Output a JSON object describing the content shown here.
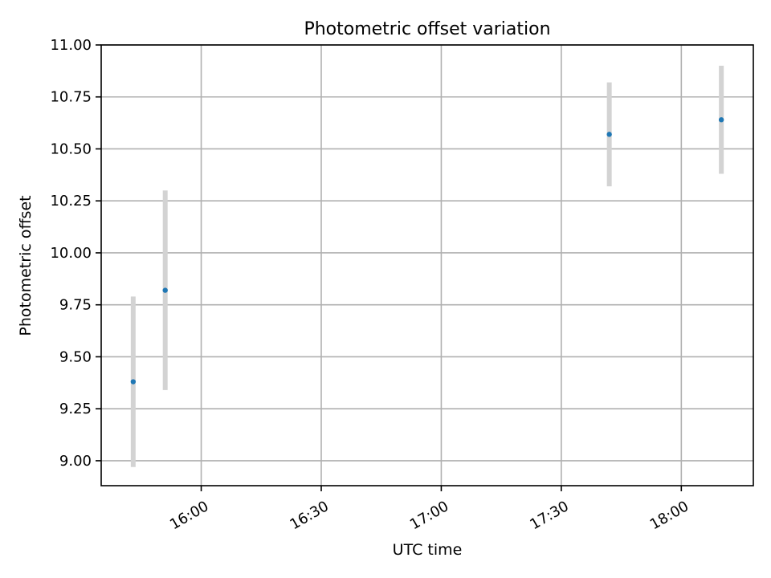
{
  "chart_data": {
    "type": "scatter",
    "title": "Photometric offset variation",
    "xlabel": "UTC time",
    "ylabel": "Photometric offset",
    "x_axis_type": "time",
    "xlim": [
      "15:35",
      "18:18"
    ],
    "ylim": [
      8.88,
      11.0
    ],
    "xticks": [
      "16:00",
      "16:30",
      "17:00",
      "17:30",
      "18:00"
    ],
    "yticks": [
      9.0,
      9.25,
      9.5,
      9.75,
      10.0,
      10.25,
      10.5,
      10.75,
      11.0
    ],
    "ytick_labels": [
      "9.00",
      "9.25",
      "9.50",
      "9.75",
      "10.00",
      "10.25",
      "10.50",
      "10.75",
      "11.00"
    ],
    "grid": true,
    "marker_color": "#1f77b4",
    "errorbar_color": "#d3d3d3",
    "series": [
      {
        "points": [
          {
            "x": "15:43",
            "y": 9.38,
            "yerr": 0.41
          },
          {
            "x": "15:51",
            "y": 9.82,
            "yerr": 0.48
          },
          {
            "x": "17:42",
            "y": 10.57,
            "yerr": 0.25
          },
          {
            "x": "18:10",
            "y": 10.64,
            "yerr": 0.26
          }
        ]
      }
    ]
  }
}
